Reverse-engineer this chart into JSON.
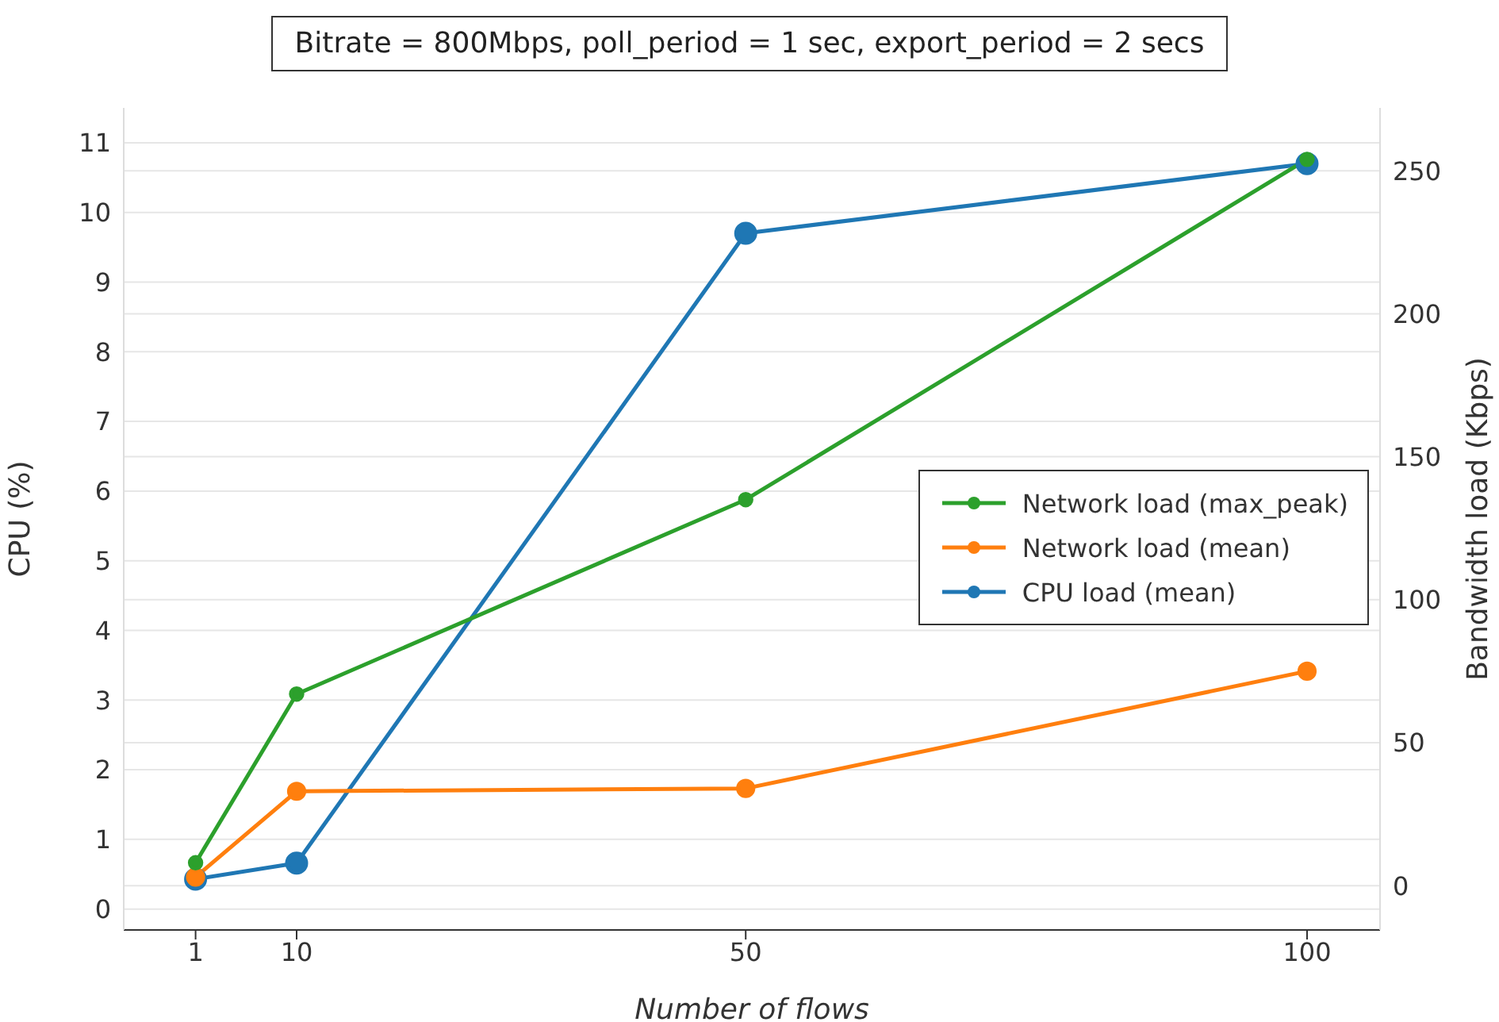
{
  "chart_data": {
    "type": "line",
    "title": "Bitrate = 800Mbps, poll_period = 1 sec, export_period = 2 secs",
    "xlabel": "Number of flows",
    "ylabel": "CPU (%)",
    "y2label": "Bandwidth load (Kbps)",
    "x": [
      1,
      10,
      50,
      100
    ],
    "series": [
      {
        "name": "Network load (max_peak)",
        "color": "#2ca02c",
        "axis": "y2",
        "values": [
          8,
          67,
          135,
          254
        ]
      },
      {
        "name": "Network load (mean)",
        "color": "#ff7f0e",
        "axis": "y2",
        "values": [
          3,
          33,
          34,
          75
        ]
      },
      {
        "name": "CPU load (mean)",
        "color": "#1f77b4",
        "values": [
          0.43,
          0.66,
          9.7,
          10.7
        ]
      }
    ],
    "xlim": [
      -5.4,
      106.5
    ],
    "xticks": [
      1,
      10,
      50,
      100
    ],
    "ylim": [
      -0.3,
      11.5
    ],
    "yticks": [
      0,
      1,
      2,
      3,
      4,
      5,
      6,
      7,
      8,
      9,
      10,
      11
    ],
    "y2lim": [
      -15.5,
      272
    ],
    "y2ticks": [
      0,
      50,
      100,
      150,
      200,
      250
    ],
    "grid": "y",
    "legend": "right",
    "marker": "circle",
    "line_style": "solid"
  }
}
